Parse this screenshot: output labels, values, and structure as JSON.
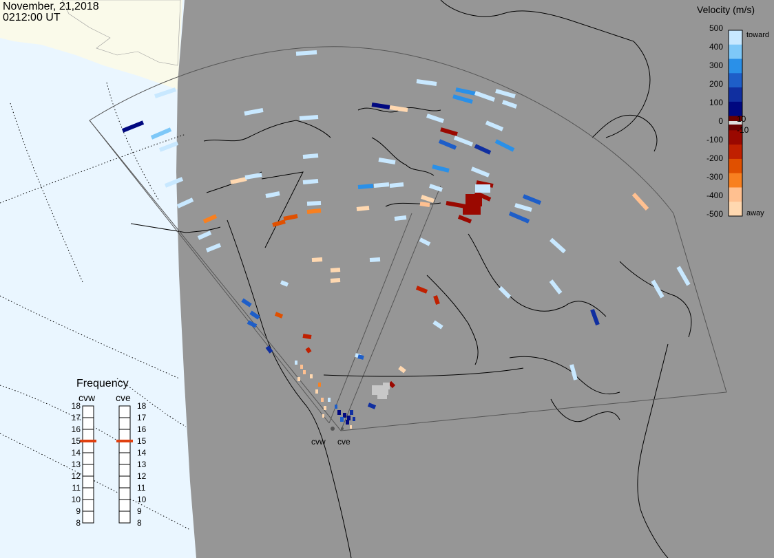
{
  "header": {
    "date": "November, 21,2018",
    "time": "0212:00 UT"
  },
  "colorbar": {
    "title": "Velocity (m/s)",
    "toward_label": "toward",
    "away_label": "away",
    "ticks": [
      "500",
      "400",
      "300",
      "200",
      "100",
      "10",
      "0",
      "-10",
      "-100",
      "-200",
      "-300",
      "-400",
      "-500"
    ],
    "colors": [
      "#c8e8ff",
      "#7ec8f8",
      "#2a90e8",
      "#1e5ec8",
      "#102fa0",
      "#000880",
      "#6a0000",
      "#9a0800",
      "#c02000",
      "#e05000",
      "#f88020",
      "#ffc090",
      "#ffd8b0"
    ]
  },
  "frequency": {
    "title": "Frequency",
    "radars": [
      {
        "name": "cvw",
        "value_mhz": 15
      },
      {
        "name": "cve",
        "value_mhz": 15
      }
    ],
    "scale": [
      "18",
      "17",
      "16",
      "15",
      "14",
      "13",
      "12",
      "11",
      "10",
      "9",
      "8"
    ]
  },
  "sites": [
    "cvw",
    "cve"
  ],
  "colors": {
    "land": "#969696",
    "ocean_night": "#eaf6ff",
    "land_day": "#fafaea",
    "indicator": "#e04010"
  }
}
